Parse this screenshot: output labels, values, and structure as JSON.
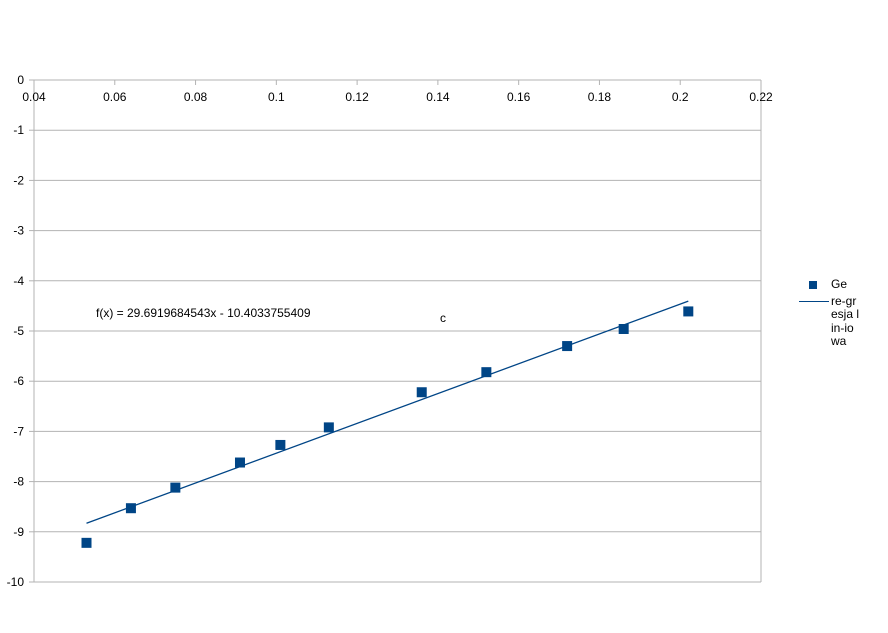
{
  "chart_data": {
    "type": "scatter",
    "xlim": [
      0.04,
      0.22
    ],
    "ylim": [
      -10,
      0
    ],
    "x_ticks": [
      0.04,
      0.06,
      0.08,
      0.1,
      0.12,
      0.14,
      0.16,
      0.18,
      0.2,
      0.22
    ],
    "x_tick_labels": [
      "0.04",
      "0.06",
      "0.08",
      "0.1",
      "0.12",
      "0.14",
      "0.16",
      "0.18",
      "0.2",
      "0.22"
    ],
    "y_ticks": [
      0,
      -1,
      -2,
      -3,
      -4,
      -5,
      -6,
      -7,
      -8,
      -9,
      -10
    ],
    "y_tick_labels": [
      "0",
      "-1",
      "-2",
      "-3",
      "-4",
      "-5",
      "-6",
      "-7",
      "-8",
      "-9",
      "-10"
    ],
    "grid": true,
    "legend_position": "right",
    "series": [
      {
        "name": "Ge",
        "color": "#004586",
        "marker": "square",
        "points": [
          {
            "x": 0.053,
            "y": -9.22
          },
          {
            "x": 0.064,
            "y": -8.53
          },
          {
            "x": 0.075,
            "y": -8.12
          },
          {
            "x": 0.091,
            "y": -7.62
          },
          {
            "x": 0.101,
            "y": -7.27
          },
          {
            "x": 0.113,
            "y": -6.92
          },
          {
            "x": 0.136,
            "y": -6.22
          },
          {
            "x": 0.152,
            "y": -5.82
          },
          {
            "x": 0.172,
            "y": -5.3
          },
          {
            "x": 0.186,
            "y": -4.96
          },
          {
            "x": 0.202,
            "y": -4.61
          }
        ]
      }
    ],
    "trendline": {
      "name": "regresja liniowa",
      "legend_label": "re-gresja lin-iowa",
      "color": "#004586",
      "slope": 29.6919684543,
      "intercept": -10.4033755409,
      "x_range": [
        0.053,
        0.202
      ],
      "equation_label": "f(x) = 29.6919684543x - 10.4033755409"
    },
    "annotations": [
      "c"
    ]
  }
}
